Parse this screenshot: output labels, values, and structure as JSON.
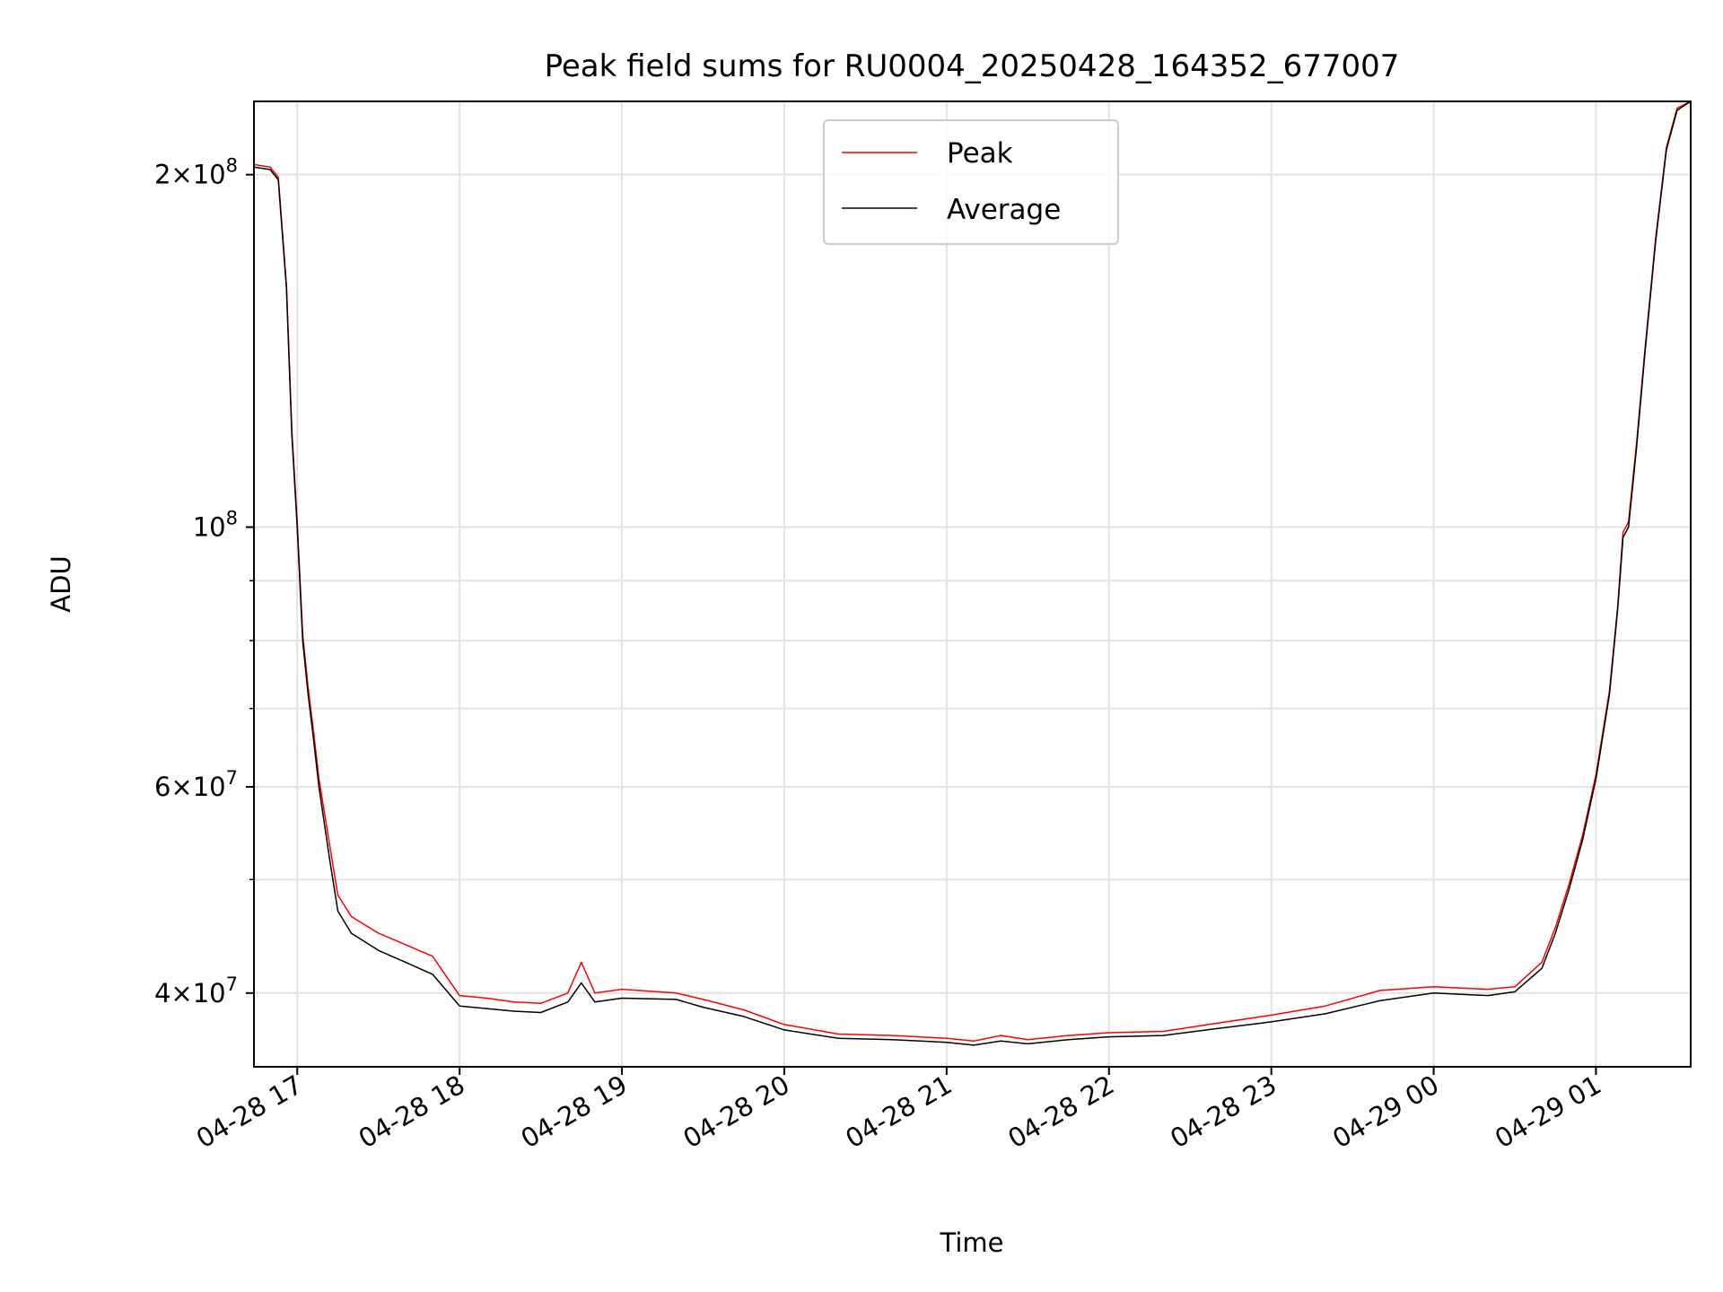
{
  "colors": {
    "peak": "#ff0000",
    "average": "#000000",
    "grid": "#e3e3e3",
    "legend_border": "#cccccc"
  },
  "chart_data": {
    "type": "line",
    "title": "Peak field sums for RU0004_20250428_164352_677007",
    "xlabel": "Time",
    "ylabel": "ADU",
    "yscale": "log",
    "grid": true,
    "legend": "upper center",
    "xlim": [
      "2025-04-28 16:44",
      "2025-04-29 01:35"
    ],
    "ylim": [
      34600000,
      231000000
    ],
    "x_ticks": [
      {
        "t": "2025-04-28 17:00",
        "label": "04-28 17"
      },
      {
        "t": "2025-04-28 18:00",
        "label": "04-28 18"
      },
      {
        "t": "2025-04-28 19:00",
        "label": "04-28 19"
      },
      {
        "t": "2025-04-28 20:00",
        "label": "04-28 20"
      },
      {
        "t": "2025-04-28 21:00",
        "label": "04-28 21"
      },
      {
        "t": "2025-04-28 22:00",
        "label": "04-28 22"
      },
      {
        "t": "2025-04-28 23:00",
        "label": "04-28 23"
      },
      {
        "t": "2025-04-29 00:00",
        "label": "04-29 00"
      },
      {
        "t": "2025-04-29 01:00",
        "label": "04-29 01"
      }
    ],
    "y_major_ticks": [
      {
        "v": 40000000,
        "mant": "4",
        "exp": "7"
      },
      {
        "v": 60000000,
        "mant": "6",
        "exp": "7"
      },
      {
        "v": 100000000,
        "mant": "",
        "exp": "8"
      },
      {
        "v": 200000000,
        "mant": "2",
        "exp": "8"
      }
    ],
    "y_minor_ticks": [
      50000000,
      70000000,
      80000000,
      90000000
    ],
    "series": [
      {
        "name": "Average",
        "x": [
          "2025-04-28 16:44",
          "2025-04-28 16:50",
          "2025-04-28 16:53",
          "2025-04-28 16:56",
          "2025-04-28 16:58",
          "2025-04-28 17:00",
          "2025-04-28 17:02",
          "2025-04-28 17:04",
          "2025-04-28 17:06",
          "2025-04-28 17:08",
          "2025-04-28 17:12",
          "2025-04-28 17:15",
          "2025-04-28 17:20",
          "2025-04-28 17:30",
          "2025-04-28 17:40",
          "2025-04-28 17:50",
          "2025-04-28 18:00",
          "2025-04-28 18:10",
          "2025-04-28 18:20",
          "2025-04-28 18:30",
          "2025-04-28 18:40",
          "2025-04-28 18:45",
          "2025-04-28 18:50",
          "2025-04-28 19:00",
          "2025-04-28 19:20",
          "2025-04-28 19:30",
          "2025-04-28 19:45",
          "2025-04-28 20:00",
          "2025-04-28 20:20",
          "2025-04-28 20:40",
          "2025-04-28 21:00",
          "2025-04-28 21:10",
          "2025-04-28 21:20",
          "2025-04-28 21:30",
          "2025-04-28 21:45",
          "2025-04-28 22:00",
          "2025-04-28 22:20",
          "2025-04-28 22:40",
          "2025-04-28 23:00",
          "2025-04-28 23:20",
          "2025-04-28 23:40",
          "2025-04-29 00:00",
          "2025-04-29 00:20",
          "2025-04-29 00:30",
          "2025-04-29 00:40",
          "2025-04-29 00:45",
          "2025-04-29 00:50",
          "2025-04-29 00:55",
          "2025-04-29 01:00",
          "2025-04-29 01:05",
          "2025-04-29 01:08",
          "2025-04-29 01:10",
          "2025-04-29 01:12",
          "2025-04-29 01:15",
          "2025-04-29 01:18",
          "2025-04-29 01:22",
          "2025-04-29 01:26",
          "2025-04-29 01:30",
          "2025-04-29 01:35"
        ],
        "y": [
          203000000,
          202000000,
          198000000,
          160000000,
          120000000,
          100000000,
          80000000,
          72000000,
          66000000,
          60000000,
          52000000,
          47000000,
          45000000,
          43500000,
          42500000,
          41500000,
          39000000,
          38800000,
          38600000,
          38500000,
          39300000,
          40800000,
          39300000,
          39600000,
          39500000,
          38900000,
          38200000,
          37200000,
          36600000,
          36500000,
          36300000,
          36100000,
          36400000,
          36200000,
          36500000,
          36700000,
          36800000,
          37300000,
          37800000,
          38400000,
          39400000,
          40000000,
          39800000,
          40100000,
          42000000,
          45000000,
          49000000,
          54000000,
          61000000,
          72000000,
          85000000,
          98000000,
          100000000,
          117000000,
          140000000,
          175000000,
          210000000,
          227000000,
          231000000
        ]
      },
      {
        "name": "Peak",
        "x": [
          "2025-04-28 16:44",
          "2025-04-28 16:50",
          "2025-04-28 16:53",
          "2025-04-28 16:56",
          "2025-04-28 16:58",
          "2025-04-28 17:00",
          "2025-04-28 17:02",
          "2025-04-28 17:04",
          "2025-04-28 17:06",
          "2025-04-28 17:08",
          "2025-04-28 17:12",
          "2025-04-28 17:15",
          "2025-04-28 17:20",
          "2025-04-28 17:30",
          "2025-04-28 17:40",
          "2025-04-28 17:50",
          "2025-04-28 18:00",
          "2025-04-28 18:10",
          "2025-04-28 18:20",
          "2025-04-28 18:30",
          "2025-04-28 18:40",
          "2025-04-28 18:45",
          "2025-04-28 18:50",
          "2025-04-28 19:00",
          "2025-04-28 19:20",
          "2025-04-28 19:30",
          "2025-04-28 19:45",
          "2025-04-28 20:00",
          "2025-04-28 20:20",
          "2025-04-28 20:40",
          "2025-04-28 21:00",
          "2025-04-28 21:10",
          "2025-04-28 21:20",
          "2025-04-28 21:30",
          "2025-04-28 21:45",
          "2025-04-28 22:00",
          "2025-04-28 22:20",
          "2025-04-28 22:40",
          "2025-04-28 23:00",
          "2025-04-28 23:20",
          "2025-04-28 23:40",
          "2025-04-29 00:00",
          "2025-04-29 00:20",
          "2025-04-29 00:30",
          "2025-04-29 00:40",
          "2025-04-29 00:45",
          "2025-04-29 00:50",
          "2025-04-29 00:55",
          "2025-04-29 01:00",
          "2025-04-29 01:05",
          "2025-04-29 01:08",
          "2025-04-29 01:10",
          "2025-04-29 01:12",
          "2025-04-29 01:15",
          "2025-04-29 01:18",
          "2025-04-29 01:22",
          "2025-04-29 01:26",
          "2025-04-29 01:30",
          "2025-04-29 01:35"
        ],
        "y": [
          204000000,
          203000000,
          199000000,
          161000000,
          121000000,
          101000000,
          81000000,
          73000000,
          67000000,
          61000000,
          53500000,
          48500000,
          46500000,
          45000000,
          44000000,
          43000000,
          39800000,
          39600000,
          39300000,
          39200000,
          40000000,
          42500000,
          40000000,
          40300000,
          40000000,
          39500000,
          38700000,
          37600000,
          36900000,
          36800000,
          36600000,
          36400000,
          36800000,
          36500000,
          36800000,
          37000000,
          37100000,
          37700000,
          38300000,
          39000000,
          40200000,
          40500000,
          40300000,
          40500000,
          42500000,
          45500000,
          49500000,
          54500000,
          61500000,
          72500000,
          85500000,
          99000000,
          101000000,
          118000000,
          141000000,
          176000000,
          211000000,
          228000000,
          231000000
        ]
      }
    ]
  }
}
